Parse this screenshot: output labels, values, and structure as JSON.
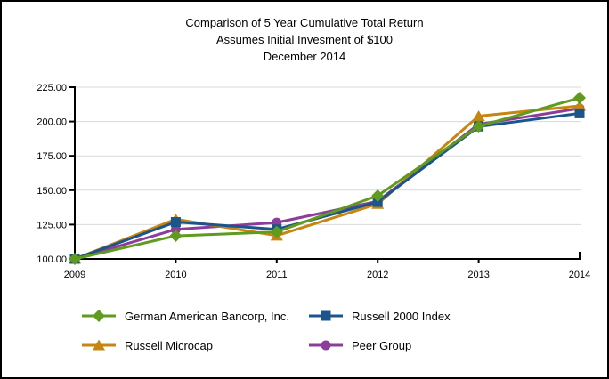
{
  "page": {
    "background": "#ffffff",
    "border_color": "#000000"
  },
  "chart_data": {
    "type": "line",
    "title": "Comparison of 5 Year Cumulative Total Return",
    "subtitle": "Assumes Initial Invesment of $100",
    "subtitle2": "December 2014",
    "categories": [
      "2009",
      "2010",
      "2011",
      "2012",
      "2013",
      "2014"
    ],
    "series": [
      {
        "name": "German American Bancorp, Inc.",
        "marker": "diamond",
        "color": "#5f9b1e",
        "values": [
          100.0,
          116.8,
          119.7,
          146.0,
          196.5,
          217.2
        ]
      },
      {
        "name": "Russell 2000 Index",
        "marker": "square",
        "color": "#1b558c",
        "values": [
          100.0,
          126.86,
          121.56,
          141.43,
          196.34,
          205.95
        ]
      },
      {
        "name": "Russell Microcap",
        "marker": "triangle",
        "color": "#c6860f",
        "values": [
          100.0,
          128.89,
          116.94,
          140.03,
          203.92,
          211.37
        ]
      },
      {
        "name": "Peer Group",
        "marker": "circle",
        "color": "#8c3c9b",
        "values": [
          100.0,
          121.5,
          126.5,
          142.0,
          198.0,
          209.5
        ]
      }
    ],
    "ylim": [
      100,
      225
    ],
    "ytick_labels": [
      "100.00",
      "125.00",
      "150.00",
      "175.00",
      "200.00",
      "225.00"
    ],
    "xlabel": "",
    "ylabel": "",
    "grid": true,
    "gridline_color": "#d9d9d9",
    "axis_color": "#000000",
    "text_color": "#000000",
    "legend_position": "bottom"
  }
}
